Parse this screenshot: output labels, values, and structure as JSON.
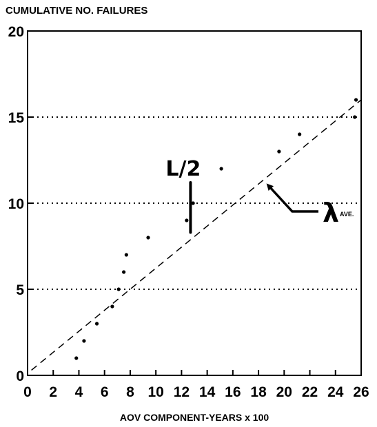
{
  "chart_data": {
    "type": "scatter",
    "ylabel": "CUMULATIVE NO. FAILURES",
    "xlabel": "AOV COMPONENT-YEARS x 100",
    "xlim": [
      0,
      26
    ],
    "ylim": [
      0,
      20
    ],
    "x_ticks": [
      "0",
      "2",
      "4",
      "6",
      "8",
      "10",
      "12",
      "14",
      "16",
      "18",
      "20",
      "22",
      "24",
      "26"
    ],
    "y_ticks": [
      "0",
      "5",
      "10",
      "15",
      "20"
    ],
    "grid": "horizontal-dotted",
    "points": [
      {
        "x": 3.8,
        "y": 1
      },
      {
        "x": 4.4,
        "y": 2
      },
      {
        "x": 5.4,
        "y": 3
      },
      {
        "x": 6.6,
        "y": 4
      },
      {
        "x": 7.1,
        "y": 5
      },
      {
        "x": 7.5,
        "y": 6
      },
      {
        "x": 7.7,
        "y": 7
      },
      {
        "x": 9.4,
        "y": 8
      },
      {
        "x": 12.4,
        "y": 9
      },
      {
        "x": 12.9,
        "y": 10
      },
      {
        "x": 15.1,
        "y": 12
      },
      {
        "x": 19.6,
        "y": 13
      },
      {
        "x": 21.2,
        "y": 14
      },
      {
        "x": 25.5,
        "y": 15
      },
      {
        "x": 25.6,
        "y": 16
      }
    ],
    "fit_line": {
      "x": [
        0.3,
        26
      ],
      "y": [
        0.3,
        16
      ]
    },
    "annotations": {
      "half_interval_label": "L/2",
      "half_interval_bar": {
        "x": 12.7,
        "y_low": 8.3,
        "y_high": 11.2
      },
      "rate_label": "λ",
      "rate_sub": "AVE."
    }
  }
}
